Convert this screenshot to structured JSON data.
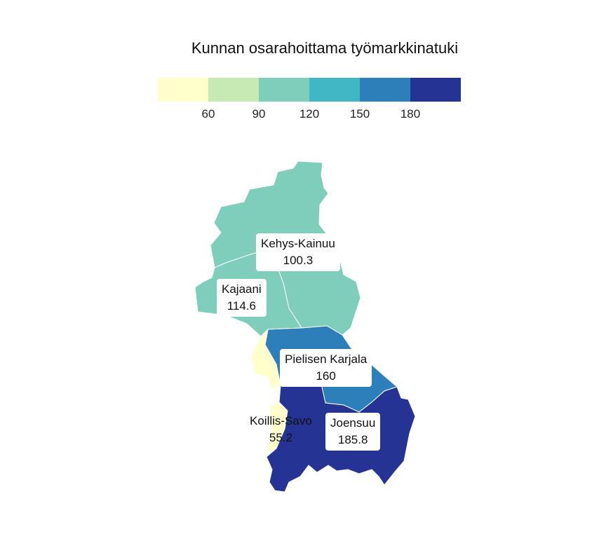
{
  "legend": {
    "title": "Kunnan osarahoittama työmarkkinatuki",
    "colors": [
      "#ffffcc",
      "#c7e9b4",
      "#7fcdbb",
      "#41b6c4",
      "#2c7fb8",
      "#253494"
    ],
    "ticks": [
      "60",
      "90",
      "120",
      "150",
      "180"
    ]
  },
  "regions": [
    {
      "name": "Kehys-Kainuu",
      "value": "100.3",
      "color": "#7fcdbb"
    },
    {
      "name": "Kajaani",
      "value": "114.6",
      "color": "#7fcdbb"
    },
    {
      "name": "Pielisen Karjala",
      "value": "160",
      "color": "#2c7fb8"
    },
    {
      "name": "Koillis-Savo",
      "value": "55.2",
      "color": "#ffffcc"
    },
    {
      "name": "Joensuu",
      "value": "185.8",
      "color": "#253494"
    }
  ]
}
